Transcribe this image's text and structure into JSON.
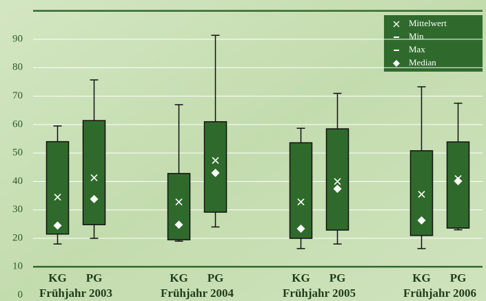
{
  "chart_data": {
    "type": "box",
    "ylim": [
      0,
      100
    ],
    "yticks": [
      0,
      10,
      20,
      30,
      40,
      50,
      60,
      70,
      80,
      90
    ],
    "grid": true,
    "color": "#2f6a2c",
    "legend": [
      "Mittelwert",
      "Min",
      "Max",
      "Median"
    ],
    "groups": [
      {
        "label": "Frühjahr 2003",
        "boxes": [
          {
            "name": "KG",
            "min": 18,
            "q1": 21.5,
            "q3": 54,
            "max": 59.5,
            "mean": 34.5,
            "median": 24.5
          },
          {
            "name": "PG",
            "min": 20,
            "q1": 24.8,
            "q3": 61.4,
            "max": 75.7,
            "mean": 41.3,
            "median": 33.8
          }
        ]
      },
      {
        "label": "Frühjahr 2004",
        "boxes": [
          {
            "name": "KG",
            "min": 19,
            "q1": 19.5,
            "q3": 42.8,
            "max": 67,
            "mean": 32.8,
            "median": 24.8
          },
          {
            "name": "PG",
            "min": 24,
            "q1": 29.2,
            "q3": 61,
            "max": 91.4,
            "mean": 47.4,
            "median": 43
          }
        ]
      },
      {
        "label": "Frühjahr 2005",
        "boxes": [
          {
            "name": "KG",
            "min": 16.4,
            "q1": 20,
            "q3": 53.6,
            "max": 58.7,
            "mean": 32.8,
            "median": 23.4
          },
          {
            "name": "PG",
            "min": 18,
            "q1": 22.9,
            "q3": 58.5,
            "max": 71,
            "mean": 40,
            "median": 37.4
          }
        ]
      },
      {
        "label": "Frühjahr 2006",
        "boxes": [
          {
            "name": "KG",
            "min": 16.4,
            "q1": 21,
            "q3": 50.8,
            "max": 73.3,
            "mean": 35.5,
            "median": 26.3
          },
          {
            "name": "PG",
            "min": 23,
            "q1": 23.6,
            "q3": 53.9,
            "max": 67.5,
            "mean": 41,
            "median": 40.1
          }
        ]
      }
    ]
  }
}
